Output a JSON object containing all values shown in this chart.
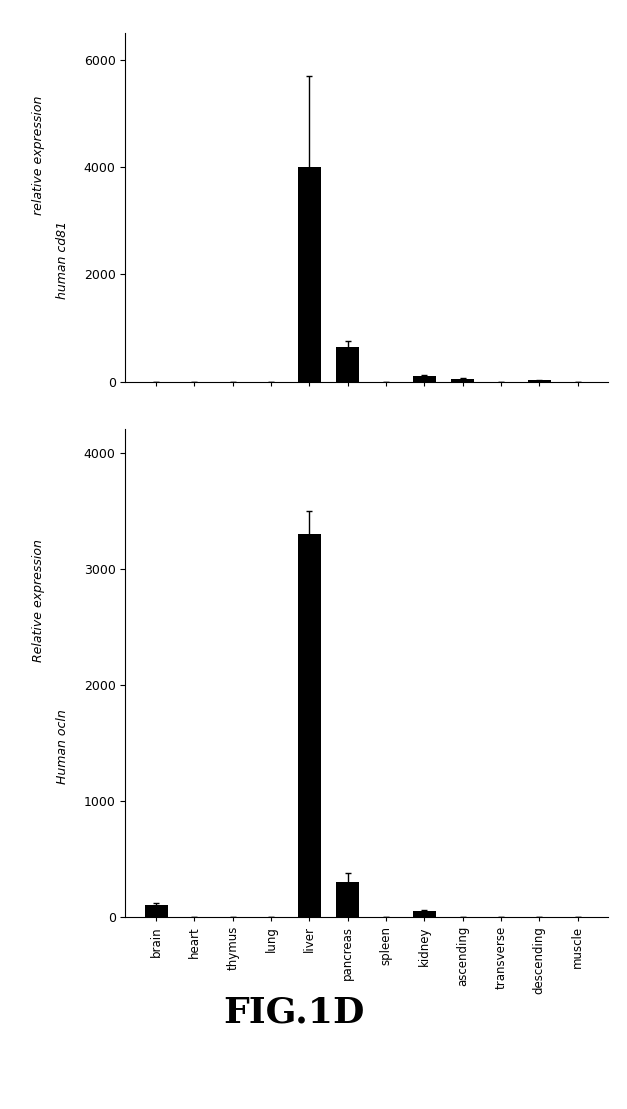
{
  "categories": [
    "brain",
    "heart",
    "thymus",
    "lung",
    "liver",
    "pancreas",
    "spleen",
    "kidney",
    "ascending",
    "transverse",
    "descending",
    "muscle"
  ],
  "chart1": {
    "ylabel_line1": "relative expression",
    "ylabel_line2": "human cd81",
    "values": [
      0,
      0,
      0,
      0,
      4000,
      650,
      0,
      100,
      50,
      0,
      20,
      0
    ],
    "errors": [
      0,
      0,
      0,
      0,
      1700,
      100,
      0,
      30,
      10,
      0,
      5,
      0
    ],
    "ylim": [
      0,
      6500
    ],
    "yticks": [
      0,
      2000,
      4000,
      6000
    ]
  },
  "chart2": {
    "ylabel_line1": "Relative expression",
    "ylabel_line2": "Human ocln",
    "values": [
      100,
      0,
      0,
      0,
      3300,
      300,
      0,
      50,
      0,
      0,
      0,
      0
    ],
    "errors": [
      20,
      0,
      0,
      0,
      200,
      80,
      0,
      10,
      0,
      0,
      0,
      0
    ],
    "ylim": [
      0,
      4200
    ],
    "yticks": [
      0,
      1000,
      2000,
      3000,
      4000
    ]
  },
  "bar_color": "#000000",
  "error_color": "#000000",
  "fig_caption": "FIG.1D",
  "background_color": "#ffffff"
}
